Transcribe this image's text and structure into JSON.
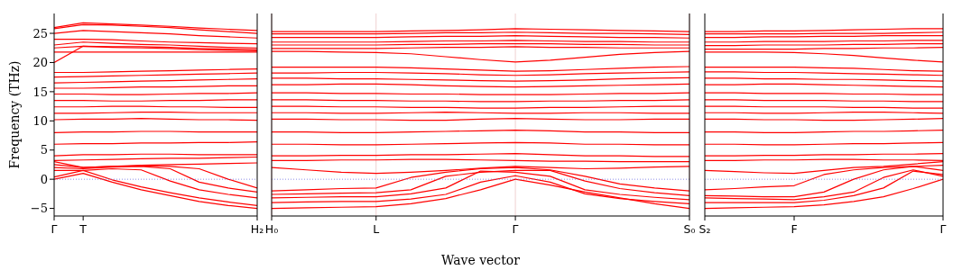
{
  "chart_data": [
    {
      "type": "line",
      "ylabel": "Frequency (THz)",
      "categories": [
        "Γ",
        "T",
        null,
        null,
        null,
        null,
        null,
        "H₂"
      ],
      "ylim": [
        -6.3,
        28.4
      ],
      "yticks": [
        {
          "value": -5,
          "label": "−5"
        },
        0,
        5,
        10,
        15,
        20,
        25
      ],
      "ref_lines": [
        {
          "axis": "y",
          "value": 0,
          "color": "#6f6fe0",
          "line_style": "dotted"
        }
      ],
      "series": [
        {
          "color": "#ff0000",
          "values": [
            26,
            26.8,
            26.6,
            26.4,
            26.2,
            25.9,
            25.7,
            25.5
          ]
        },
        {
          "color": "#ff0000",
          "values": [
            25.8,
            26.5,
            26.4,
            26.2,
            26,
            25.6,
            25.3,
            25
          ]
        },
        {
          "color": "#ff0000",
          "values": [
            25,
            25.5,
            25.3,
            25.1,
            24.9,
            24.6,
            24.4,
            24.2
          ]
        },
        {
          "color": "#ff0000",
          "values": [
            24,
            24,
            23.9,
            23.7,
            23.5,
            23.4,
            23.3,
            23.2
          ]
        },
        {
          "color": "#ff0000",
          "values": [
            23,
            23.5,
            23.3,
            23.1,
            23,
            22.8,
            22.6,
            22.5
          ]
        },
        {
          "color": "#ff0000",
          "values": [
            22.5,
            22.8,
            22.7,
            22.7,
            22.6,
            22.4,
            22.3,
            22.2
          ]
        },
        {
          "color": "#ff0000",
          "values": [
            20,
            22.8,
            22.6,
            22.5,
            22.4,
            22.2,
            22.1,
            22
          ]
        },
        {
          "color": "#ff0000",
          "values": [
            21.8,
            21.8,
            21.8,
            21.8,
            21.8,
            21.8,
            21.8,
            21.8
          ]
        },
        {
          "color": "#ff0000",
          "values": [
            18.3,
            18.3,
            18.4,
            18.5,
            18.6,
            18.7,
            18.8,
            18.9
          ]
        },
        {
          "color": "#ff0000",
          "values": [
            17.5,
            17.6,
            17.7,
            17.8,
            17.9,
            18,
            18.1,
            18.2
          ]
        },
        {
          "color": "#ff0000",
          "values": [
            16.5,
            16.6,
            16.7,
            16.8,
            16.9,
            17,
            17.1,
            17.2
          ]
        },
        {
          "color": "#ff0000",
          "values": [
            15.6,
            15.6,
            15.7,
            15.8,
            15.8,
            15.9,
            16,
            16
          ]
        },
        {
          "color": "#ff0000",
          "values": [
            14.6,
            14.6,
            14.5,
            14.5,
            14.6,
            14.7,
            14.7,
            14.8
          ]
        },
        {
          "color": "#ff0000",
          "values": [
            13.5,
            13.5,
            13.4,
            13.4,
            13.5,
            13.5,
            13.6,
            13.6
          ]
        },
        {
          "color": "#ff0000",
          "values": [
            12.4,
            12.4,
            12.5,
            12.5,
            12.4,
            12.4,
            12.3,
            12.3
          ]
        },
        {
          "color": "#ff0000",
          "values": [
            11.3,
            11.3,
            11.4,
            11.5,
            11.5,
            11.4,
            11.4,
            11.4
          ]
        },
        {
          "color": "#ff0000",
          "values": [
            10.2,
            10.3,
            10.3,
            10.4,
            10.3,
            10.2,
            10.2,
            10.1
          ]
        },
        {
          "color": "#ff0000",
          "values": [
            8,
            8.1,
            8.1,
            8.2,
            8.2,
            8.1,
            8.1,
            8.1
          ]
        },
        {
          "color": "#ff0000",
          "values": [
            6,
            6.1,
            6.1,
            6.2,
            6.2,
            6.3,
            6.3,
            6.4
          ]
        },
        {
          "color": "#ff0000",
          "values": [
            4,
            4.2,
            4.2,
            4.3,
            4.3,
            4.2,
            4.2,
            4.2
          ]
        },
        {
          "color": "#ff0000",
          "values": [
            3.2,
            3.3,
            3.4,
            3.5,
            3.6,
            3.6,
            3.7,
            3.8
          ]
        },
        {
          "color": "#ff0000",
          "values": [
            2.5,
            2,
            2.2,
            2.4,
            2.5,
            2.6,
            2.7,
            2.8
          ]
        },
        {
          "color": "#ff0000",
          "values": [
            0,
            1,
            -0.5,
            -1.8,
            -2.8,
            -3.8,
            -4.5,
            -5
          ]
        },
        {
          "color": "#ff0000",
          "values": [
            0.4,
            1.5,
            -0.1,
            -1.3,
            -2.3,
            -3.2,
            -3.9,
            -4.5
          ]
        },
        {
          "color": "#ff0000",
          "values": [
            1.5,
            1.5,
            1.8,
            1.6,
            -0.3,
            -1.8,
            -2.6,
            -3.2
          ]
        },
        {
          "color": "#ff0000",
          "values": [
            2,
            1.8,
            2.1,
            2.2,
            1.8,
            -0.5,
            -1.5,
            -2.2
          ]
        },
        {
          "color": "#ff0000",
          "values": [
            3,
            2,
            2.2,
            2.3,
            2.2,
            1.8,
            0,
            -1.5
          ]
        }
      ]
    },
    {
      "type": "line",
      "xlabel": "Wave vector",
      "categories": [
        "H₀",
        null,
        null,
        "L",
        null,
        null,
        null,
        "Γ",
        null,
        null,
        null,
        null,
        "S₀"
      ],
      "ylim": [
        -6.3,
        28.4
      ],
      "yticks": [
        -5,
        0,
        5,
        10,
        15,
        20,
        25
      ],
      "tick_labels": "x",
      "grid": "x",
      "ref_lines": [
        {
          "axis": "y",
          "value": 0,
          "color": "#6f6fe0",
          "line_style": "dotted"
        }
      ],
      "series": [
        {
          "color": "#ff0000",
          "values": [
            25.3,
            25.3,
            25.3,
            25.3,
            25.4,
            25.5,
            25.6,
            25.8,
            25.7,
            25.6,
            25.5,
            25.4,
            25.3
          ]
        },
        {
          "color": "#ff0000",
          "values": [
            24.9,
            24.9,
            24.9,
            24.9,
            25,
            25.1,
            25.1,
            25.2,
            25.1,
            25,
            25,
            24.9,
            24.8
          ]
        },
        {
          "color": "#ff0000",
          "values": [
            24.3,
            24.3,
            24.3,
            24.3,
            24.4,
            24.5,
            24.5,
            24.6,
            24.5,
            24.4,
            24.3,
            24.3,
            24.2
          ]
        },
        {
          "color": "#ff0000",
          "values": [
            23.5,
            23.5,
            23.5,
            23.5,
            23.6,
            23.7,
            23.7,
            23.8,
            23.7,
            23.6,
            23.6,
            23.5,
            23.5
          ]
        },
        {
          "color": "#ff0000",
          "values": [
            23,
            23,
            23,
            23,
            23.1,
            23.1,
            23.2,
            23.2,
            23.2,
            23.1,
            23.1,
            23,
            23
          ]
        },
        {
          "color": "#ff0000",
          "values": [
            22.4,
            22.4,
            22.4,
            22.4,
            22.5,
            22.6,
            22.6,
            22.7,
            22.6,
            22.6,
            22.5,
            22.5,
            22.5
          ]
        },
        {
          "color": "#ff0000",
          "values": [
            21.9,
            21.9,
            21.8,
            21.7,
            21.5,
            21,
            20.5,
            20.1,
            20.4,
            20.9,
            21.4,
            21.7,
            21.9
          ]
        },
        {
          "color": "#ff0000",
          "values": [
            19.2,
            19.2,
            19.2,
            19.2,
            19.1,
            18.9,
            18.7,
            18.5,
            18.6,
            18.8,
            19,
            19.2,
            19.3
          ]
        },
        {
          "color": "#ff0000",
          "values": [
            18.2,
            18.2,
            18.3,
            18.3,
            18.2,
            18.1,
            17.9,
            17.8,
            17.9,
            18.1,
            18.2,
            18.3,
            18.4
          ]
        },
        {
          "color": "#ff0000",
          "values": [
            17.3,
            17.3,
            17.2,
            17.2,
            17.1,
            17,
            16.9,
            16.8,
            16.9,
            17,
            17.2,
            17.3,
            17.4
          ]
        },
        {
          "color": "#ff0000",
          "values": [
            16.2,
            16.2,
            16.3,
            16.3,
            16.2,
            16,
            15.9,
            15.8,
            15.9,
            16,
            16.1,
            16.2,
            16.3
          ]
        },
        {
          "color": "#ff0000",
          "values": [
            14.8,
            14.8,
            14.7,
            14.7,
            14.6,
            14.6,
            14.5,
            14.5,
            14.5,
            14.6,
            14.7,
            14.7,
            14.8
          ]
        },
        {
          "color": "#ff0000",
          "values": [
            13.6,
            13.6,
            13.5,
            13.5,
            13.4,
            13.4,
            13.3,
            13.3,
            13.4,
            13.4,
            13.5,
            13.5,
            13.6
          ]
        },
        {
          "color": "#ff0000",
          "values": [
            12.5,
            12.5,
            12.4,
            12.4,
            12.3,
            12.3,
            12.2,
            12.2,
            12.3,
            12.3,
            12.4,
            12.5,
            12.5
          ]
        },
        {
          "color": "#ff0000",
          "values": [
            11.4,
            11.4,
            11.3,
            11.3,
            11.4,
            11.5,
            11.4,
            11.3,
            11.3,
            11.4,
            11.4,
            11.3,
            11.3
          ]
        },
        {
          "color": "#ff0000",
          "values": [
            10.3,
            10.3,
            10.2,
            10.2,
            10.1,
            10.1,
            10.3,
            10.4,
            10.3,
            10.2,
            10.2,
            10.3,
            10.3
          ]
        },
        {
          "color": "#ff0000",
          "values": [
            8.1,
            8.1,
            8,
            8,
            8.1,
            8.2,
            8.3,
            8.4,
            8.3,
            8.1,
            8.1,
            8,
            8
          ]
        },
        {
          "color": "#ff0000",
          "values": [
            6,
            6,
            5.9,
            5.9,
            6,
            6.1,
            6.2,
            6.3,
            6.2,
            6,
            6,
            5.9,
            5.9
          ]
        },
        {
          "color": "#ff0000",
          "values": [
            4,
            4,
            4.1,
            4.1,
            4.2,
            4.2,
            4.3,
            4.4,
            4.2,
            4,
            4,
            3.9,
            3.9
          ]
        },
        {
          "color": "#ff0000",
          "values": [
            3.2,
            3.2,
            3.3,
            3.3,
            3.4,
            3.4,
            3.3,
            3.2,
            3.1,
            3.1,
            3,
            3,
            3
          ]
        },
        {
          "color": "#ff0000",
          "values": [
            2,
            1.6,
            1.2,
            1,
            1.2,
            1.5,
            1.9,
            2.2,
            2,
            1.8,
            1.9,
            2.1,
            2.2
          ]
        },
        {
          "color": "#ff0000",
          "values": [
            -2,
            -1.8,
            -1.6,
            -1.5,
            0.3,
            1.2,
            1.8,
            2,
            1.6,
            0.5,
            -0.8,
            -1.5,
            -2
          ]
        },
        {
          "color": "#ff0000",
          "values": [
            -2.6,
            -2.5,
            -2.4,
            -2.3,
            -1.8,
            0.5,
            1.2,
            1.5,
            1.5,
            -0.3,
            -1.6,
            -2.3,
            -2.8
          ]
        },
        {
          "color": "#ff0000",
          "values": [
            -3.2,
            -3.1,
            -3,
            -3,
            -2.5,
            -1.5,
            1.4,
            1.2,
            0.5,
            -1.8,
            -2.6,
            -3.1,
            -3.5
          ]
        },
        {
          "color": "#ff0000",
          "values": [
            -4,
            -3.9,
            -3.8,
            -3.8,
            -3.4,
            -2.6,
            -0.5,
            0.6,
            -0.5,
            -2.5,
            -3.3,
            -3.8,
            -4.2
          ]
        },
        {
          "color": "#ff0000",
          "values": [
            -5,
            -4.9,
            -4.8,
            -4.7,
            -4.2,
            -3.3,
            -1.8,
            0,
            -1,
            -2.2,
            -3.2,
            -4.2,
            -5
          ]
        }
      ]
    },
    {
      "type": "line",
      "categories": [
        "S₂",
        null,
        null,
        "F",
        null,
        null,
        null,
        null,
        "Γ"
      ],
      "ylim": [
        -6.3,
        28.4
      ],
      "yticks": [
        -5,
        0,
        5,
        10,
        15,
        20,
        25
      ],
      "tick_labels": "x",
      "ref_lines": [
        {
          "axis": "y",
          "value": 0,
          "color": "#6f6fe0",
          "line_style": "dotted"
        }
      ],
      "series": [
        {
          "color": "#ff0000",
          "values": [
            25.3,
            25.3,
            25.4,
            25.4,
            25.5,
            25.6,
            25.7,
            25.8,
            25.8
          ]
        },
        {
          "color": "#ff0000",
          "values": [
            24.9,
            24.9,
            24.9,
            24.9,
            25,
            25,
            25,
            25.1,
            25.2
          ]
        },
        {
          "color": "#ff0000",
          "values": [
            24.3,
            24.3,
            24.4,
            24.4,
            24.5,
            24.5,
            24.6,
            24.6,
            24.6
          ]
        },
        {
          "color": "#ff0000",
          "values": [
            23.5,
            23.5,
            23.6,
            23.6,
            23.6,
            23.7,
            23.7,
            23.8,
            23.8
          ]
        },
        {
          "color": "#ff0000",
          "values": [
            22.9,
            22.9,
            23,
            23,
            23,
            23.1,
            23.1,
            23.2,
            23.2
          ]
        },
        {
          "color": "#ff0000",
          "values": [
            22.3,
            22.3,
            22.3,
            22.3,
            22.4,
            22.4,
            22.5,
            22.5,
            22.6
          ]
        },
        {
          "color": "#ff0000",
          "values": [
            21.8,
            21.8,
            21.8,
            21.7,
            21.5,
            21.2,
            20.8,
            20.4,
            20.1
          ]
        },
        {
          "color": "#ff0000",
          "values": [
            19.2,
            19.2,
            19.2,
            19.2,
            19.1,
            19,
            18.8,
            18.6,
            18.5
          ]
        },
        {
          "color": "#ff0000",
          "values": [
            18.4,
            18.4,
            18.3,
            18.3,
            18.2,
            18.1,
            18,
            17.9,
            17.8
          ]
        },
        {
          "color": "#ff0000",
          "values": [
            17.3,
            17.3,
            17.2,
            17.2,
            17.1,
            17.1,
            17,
            16.9,
            16.8
          ]
        },
        {
          "color": "#ff0000",
          "values": [
            16.2,
            16.2,
            16.3,
            16.3,
            16.2,
            16.1,
            16,
            15.9,
            15.8
          ]
        },
        {
          "color": "#ff0000",
          "values": [
            14.8,
            14.8,
            14.7,
            14.7,
            14.7,
            14.6,
            14.6,
            14.5,
            14.5
          ]
        },
        {
          "color": "#ff0000",
          "values": [
            13.6,
            13.6,
            13.5,
            13.5,
            13.5,
            13.4,
            13.4,
            13.3,
            13.3
          ]
        },
        {
          "color": "#ff0000",
          "values": [
            12.5,
            12.5,
            12.4,
            12.4,
            12.4,
            12.3,
            12.3,
            12.2,
            12.2
          ]
        },
        {
          "color": "#ff0000",
          "values": [
            11.4,
            11.4,
            11.3,
            11.3,
            11.4,
            11.5,
            11.5,
            11.4,
            11.3
          ]
        },
        {
          "color": "#ff0000",
          "values": [
            10.3,
            10.3,
            10.2,
            10.2,
            10.1,
            10.1,
            10.2,
            10.3,
            10.4
          ]
        },
        {
          "color": "#ff0000",
          "values": [
            8.1,
            8.1,
            8,
            8,
            8.1,
            8.2,
            8.2,
            8.3,
            8.4
          ]
        },
        {
          "color": "#ff0000",
          "values": [
            6,
            6,
            5.9,
            5.9,
            6,
            6.1,
            6.1,
            6.2,
            6.3
          ]
        },
        {
          "color": "#ff0000",
          "values": [
            4,
            4,
            4.1,
            4.1,
            4.2,
            4.2,
            4.3,
            4.3,
            4.4
          ]
        },
        {
          "color": "#ff0000",
          "values": [
            3.2,
            3.2,
            3.3,
            3.3,
            3.4,
            3.4,
            3.3,
            3.3,
            3.2
          ]
        },
        {
          "color": "#ff0000",
          "values": [
            1.5,
            1.3,
            1.1,
            1,
            1.5,
            2,
            2.2,
            2.6,
            3
          ]
        },
        {
          "color": "#ff0000",
          "values": [
            -1.8,
            -1.6,
            -1.3,
            -1.1,
            0.8,
            1.6,
            2,
            2.2,
            1.5
          ]
        },
        {
          "color": "#ff0000",
          "values": [
            -2.8,
            -2.9,
            -3,
            -3,
            -2.2,
            0,
            1.6,
            2.2,
            2.4
          ]
        },
        {
          "color": "#ff0000",
          "values": [
            -3.2,
            -3.3,
            -3.4,
            -3.5,
            -3,
            -2.2,
            0.3,
            1.6,
            0.5
          ]
        },
        {
          "color": "#ff0000",
          "values": [
            -4,
            -4,
            -4,
            -4,
            -3.6,
            -2.8,
            -1.5,
            1.4,
            0.8
          ]
        },
        {
          "color": "#ff0000",
          "values": [
            -5,
            -4.9,
            -4.8,
            -4.7,
            -4.4,
            -3.8,
            -3,
            -1.6,
            0
          ]
        }
      ]
    }
  ]
}
